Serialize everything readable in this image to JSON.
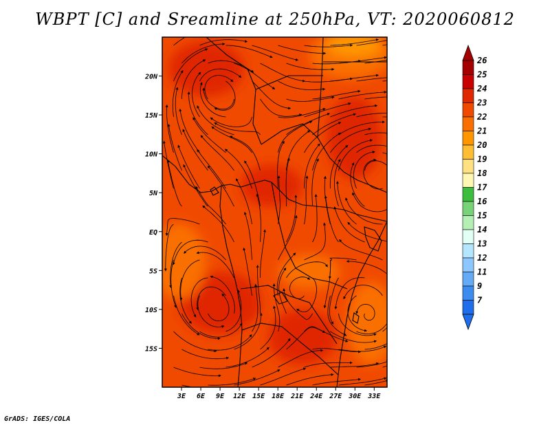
{
  "title": "WBPT [C] and Sreamline at 250hPa, VT: 2020060812",
  "credit": "GrADS: IGES/COLA",
  "map": {
    "lon_range": [
      0,
      35
    ],
    "lat_range": [
      -20,
      25
    ],
    "lon_ticks": [
      {
        "value": 3,
        "label": "3E"
      },
      {
        "value": 6,
        "label": "6E"
      },
      {
        "value": 9,
        "label": "9E"
      },
      {
        "value": 12,
        "label": "12E"
      },
      {
        "value": 15,
        "label": "15E"
      },
      {
        "value": 18,
        "label": "18E"
      },
      {
        "value": 21,
        "label": "21E"
      },
      {
        "value": 24,
        "label": "24E"
      },
      {
        "value": 27,
        "label": "27E"
      },
      {
        "value": 30,
        "label": "30E"
      },
      {
        "value": 33,
        "label": "33E"
      }
    ],
    "lat_ticks": [
      {
        "value": 20,
        "label": "20N"
      },
      {
        "value": 15,
        "label": "15N"
      },
      {
        "value": 10,
        "label": "10N"
      },
      {
        "value": 5,
        "label": "5N"
      },
      {
        "value": 0,
        "label": "EQ"
      },
      {
        "value": -5,
        "label": "5S"
      },
      {
        "value": -10,
        "label": "10S"
      },
      {
        "value": -15,
        "label": "15S"
      }
    ]
  },
  "colorbar": {
    "levels": [
      {
        "label": "26",
        "color": "#a50000"
      },
      {
        "label": "25",
        "color": "#c80000"
      },
      {
        "label": "24",
        "color": "#e02800"
      },
      {
        "label": "23",
        "color": "#f04a00"
      },
      {
        "label": "22",
        "color": "#fa7000"
      },
      {
        "label": "21",
        "color": "#ff9600"
      },
      {
        "label": "20",
        "color": "#ffbe32"
      },
      {
        "label": "19",
        "color": "#ffe182"
      },
      {
        "label": "18",
        "color": "#fff8b4"
      },
      {
        "label": "17",
        "color": "#3cbe3c"
      },
      {
        "label": "16",
        "color": "#78d278"
      },
      {
        "label": "15",
        "color": "#b4f0b4"
      },
      {
        "label": "14",
        "color": "#e1fff5"
      },
      {
        "label": "13",
        "color": "#b4e6ff"
      },
      {
        "label": "12",
        "color": "#8cc8ff"
      },
      {
        "label": "11",
        "color": "#64aaf5"
      },
      {
        "label": "9",
        "color": "#3c8cf0"
      },
      {
        "label": "7",
        "color": "#1e6eeb"
      }
    ],
    "top_color": "#a50000",
    "bottom_color": "#1e6eeb"
  },
  "field_colors": {
    "base": "#f04a00",
    "warm": "#e02800",
    "cool": "#fa7000",
    "coolest": "#ff9600"
  }
}
